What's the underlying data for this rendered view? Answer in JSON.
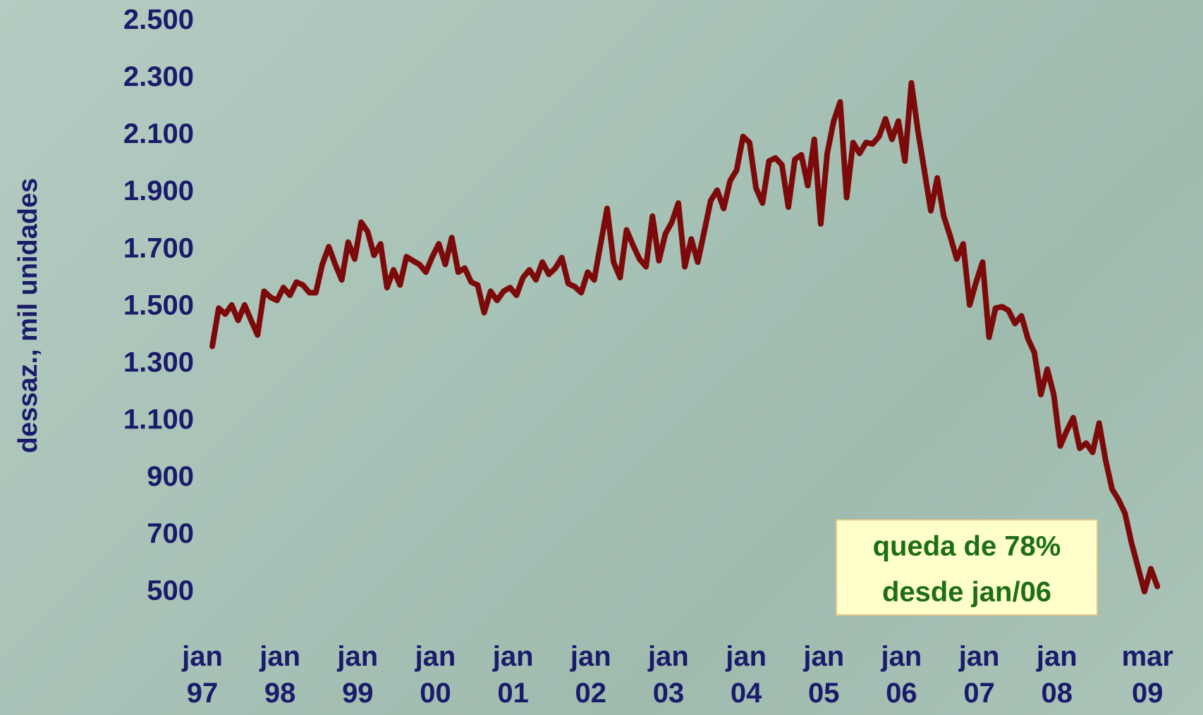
{
  "chart_data": {
    "type": "line",
    "y_label": "dessaz., mil unidades",
    "categories": [
      "jan 97",
      null,
      null,
      null,
      null,
      null,
      null,
      null,
      null,
      null,
      null,
      null,
      "jan 98",
      null,
      null,
      null,
      null,
      null,
      null,
      null,
      null,
      null,
      null,
      null,
      "jan 99",
      null,
      null,
      null,
      null,
      null,
      null,
      null,
      null,
      null,
      null,
      null,
      "jan 00",
      null,
      null,
      null,
      null,
      null,
      null,
      null,
      null,
      null,
      null,
      null,
      "jan 01",
      null,
      null,
      null,
      null,
      null,
      null,
      null,
      null,
      null,
      null,
      null,
      "jan 02",
      null,
      null,
      null,
      null,
      null,
      null,
      null,
      null,
      null,
      null,
      null,
      "jan 03",
      null,
      null,
      null,
      null,
      null,
      null,
      null,
      null,
      null,
      null,
      null,
      "jan 04",
      null,
      null,
      null,
      null,
      null,
      null,
      null,
      null,
      null,
      null,
      null,
      "jan 05",
      null,
      null,
      null,
      null,
      null,
      null,
      null,
      null,
      null,
      null,
      null,
      "jan 06",
      null,
      null,
      null,
      null,
      null,
      null,
      null,
      null,
      null,
      null,
      null,
      "jan 07",
      null,
      null,
      null,
      null,
      null,
      null,
      null,
      null,
      null,
      null,
      null,
      "jan 08",
      null,
      null,
      null,
      null,
      null,
      null,
      null,
      null,
      null,
      null,
      null,
      null,
      null,
      "mar 09"
    ],
    "values": [
      1362,
      1496,
      1475,
      1507,
      1453,
      1507,
      1453,
      1402,
      1555,
      1534,
      1523,
      1568,
      1541,
      1587,
      1577,
      1550,
      1550,
      1649,
      1711,
      1649,
      1595,
      1727,
      1668,
      1797,
      1764,
      1681,
      1721,
      1568,
      1630,
      1577,
      1676,
      1662,
      1649,
      1622,
      1676,
      1721,
      1649,
      1743,
      1622,
      1636,
      1587,
      1577,
      1480,
      1555,
      1523,
      1555,
      1568,
      1541,
      1603,
      1630,
      1595,
      1657,
      1614,
      1636,
      1673,
      1582,
      1571,
      1550,
      1622,
      1595,
      1721,
      1845,
      1657,
      1603,
      1770,
      1716,
      1668,
      1641,
      1818,
      1662,
      1756,
      1797,
      1864,
      1641,
      1738,
      1657,
      1764,
      1872,
      1909,
      1845,
      1942,
      1979,
      2097,
      2076,
      1917,
      1864,
      2011,
      2022,
      1998,
      1850,
      2017,
      2033,
      1925,
      2087,
      1791,
      2038,
      2151,
      2218,
      1883,
      2076,
      2038,
      2076,
      2071,
      2097,
      2159,
      2087,
      2151,
      2011,
      2285,
      2119,
      1979,
      1837,
      1952,
      1818,
      1748,
      1668,
      1721,
      1507,
      1587,
      1657,
      1394,
      1496,
      1501,
      1488,
      1442,
      1469,
      1389,
      1340,
      1193,
      1282,
      1193,
      1013,
      1066,
      1112,
      1005,
      1023,
      991,
      1093,
      964,
      862,
      825,
      777,
      674,
      589,
      503,
      583,
      521
    ],
    "color": "#7d0a0a",
    "ylim": [
      500,
      2500
    ],
    "yticks": [
      500,
      700,
      900,
      {
        "value": 1100,
        "label": "1.100"
      },
      {
        "value": 1300,
        "label": "1.300"
      },
      {
        "value": 1500,
        "label": "1.500"
      },
      {
        "value": 1700,
        "label": "1.700"
      },
      {
        "value": 1900,
        "label": "1.900"
      },
      {
        "value": 2100,
        "label": "2.100"
      },
      {
        "value": 2300,
        "label": "2.300"
      },
      {
        "value": 2500,
        "label": "2.500"
      }
    ],
    "grid": false,
    "annotation": [
      "queda de 78%",
      "desde jan/06"
    ]
  }
}
